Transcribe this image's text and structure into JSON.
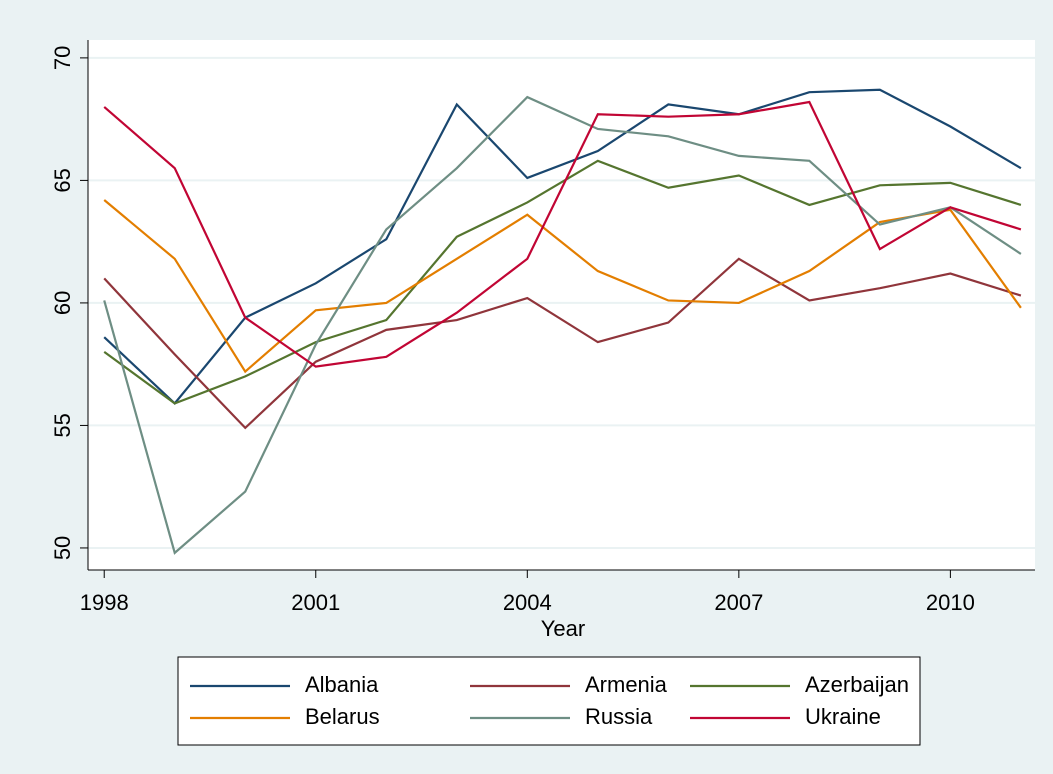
{
  "chart_data": {
    "type": "line",
    "x_label": "Year",
    "x": [
      1998,
      1999,
      2000,
      2001,
      2002,
      2003,
      2004,
      2005,
      2006,
      2007,
      2008,
      2009,
      2010,
      2011
    ],
    "series": [
      {
        "name": "Albania",
        "color": "#1a476f",
        "values": [
          58.6,
          55.9,
          59.4,
          60.8,
          62.6,
          68.1,
          65.1,
          66.2,
          68.1,
          67.7,
          68.6,
          68.7,
          67.2,
          65.5
        ]
      },
      {
        "name": "Armenia",
        "color": "#90353b",
        "values": [
          61.0,
          57.9,
          54.9,
          57.6,
          58.9,
          59.3,
          60.2,
          58.4,
          59.2,
          61.8,
          60.1,
          60.6,
          61.2,
          60.3
        ]
      },
      {
        "name": "Azerbaijan",
        "color": "#55752f",
        "values": [
          58.0,
          55.9,
          57.0,
          58.4,
          59.3,
          62.7,
          64.1,
          65.8,
          64.7,
          65.2,
          64.0,
          64.8,
          64.9,
          64.0
        ]
      },
      {
        "name": "Belarus",
        "color": "#e37e00",
        "values": [
          64.2,
          61.8,
          57.2,
          59.7,
          60.0,
          61.8,
          63.6,
          61.3,
          60.1,
          60.0,
          61.3,
          63.3,
          63.8,
          59.8
        ]
      },
      {
        "name": "Russia",
        "color": "#6e8e84",
        "values": [
          60.1,
          49.8,
          52.3,
          58.3,
          63.0,
          65.5,
          68.4,
          67.1,
          66.8,
          66.0,
          65.8,
          63.2,
          63.9,
          62.0
        ]
      },
      {
        "name": "Ukraine",
        "color": "#c10534",
        "values": [
          68.0,
          65.5,
          59.4,
          57.4,
          57.8,
          59.6,
          61.8,
          67.7,
          67.6,
          67.7,
          68.2,
          62.2,
          63.9,
          63.0
        ]
      }
    ],
    "xlim": [
      1997.77,
      2011.2
    ],
    "xticks": [
      1998,
      2001,
      2004,
      2007,
      2010
    ],
    "ylim": [
      49.1,
      70.73
    ],
    "yticks": [
      50,
      55,
      60,
      65,
      70
    ],
    "grid": true,
    "legend": "bottom"
  }
}
